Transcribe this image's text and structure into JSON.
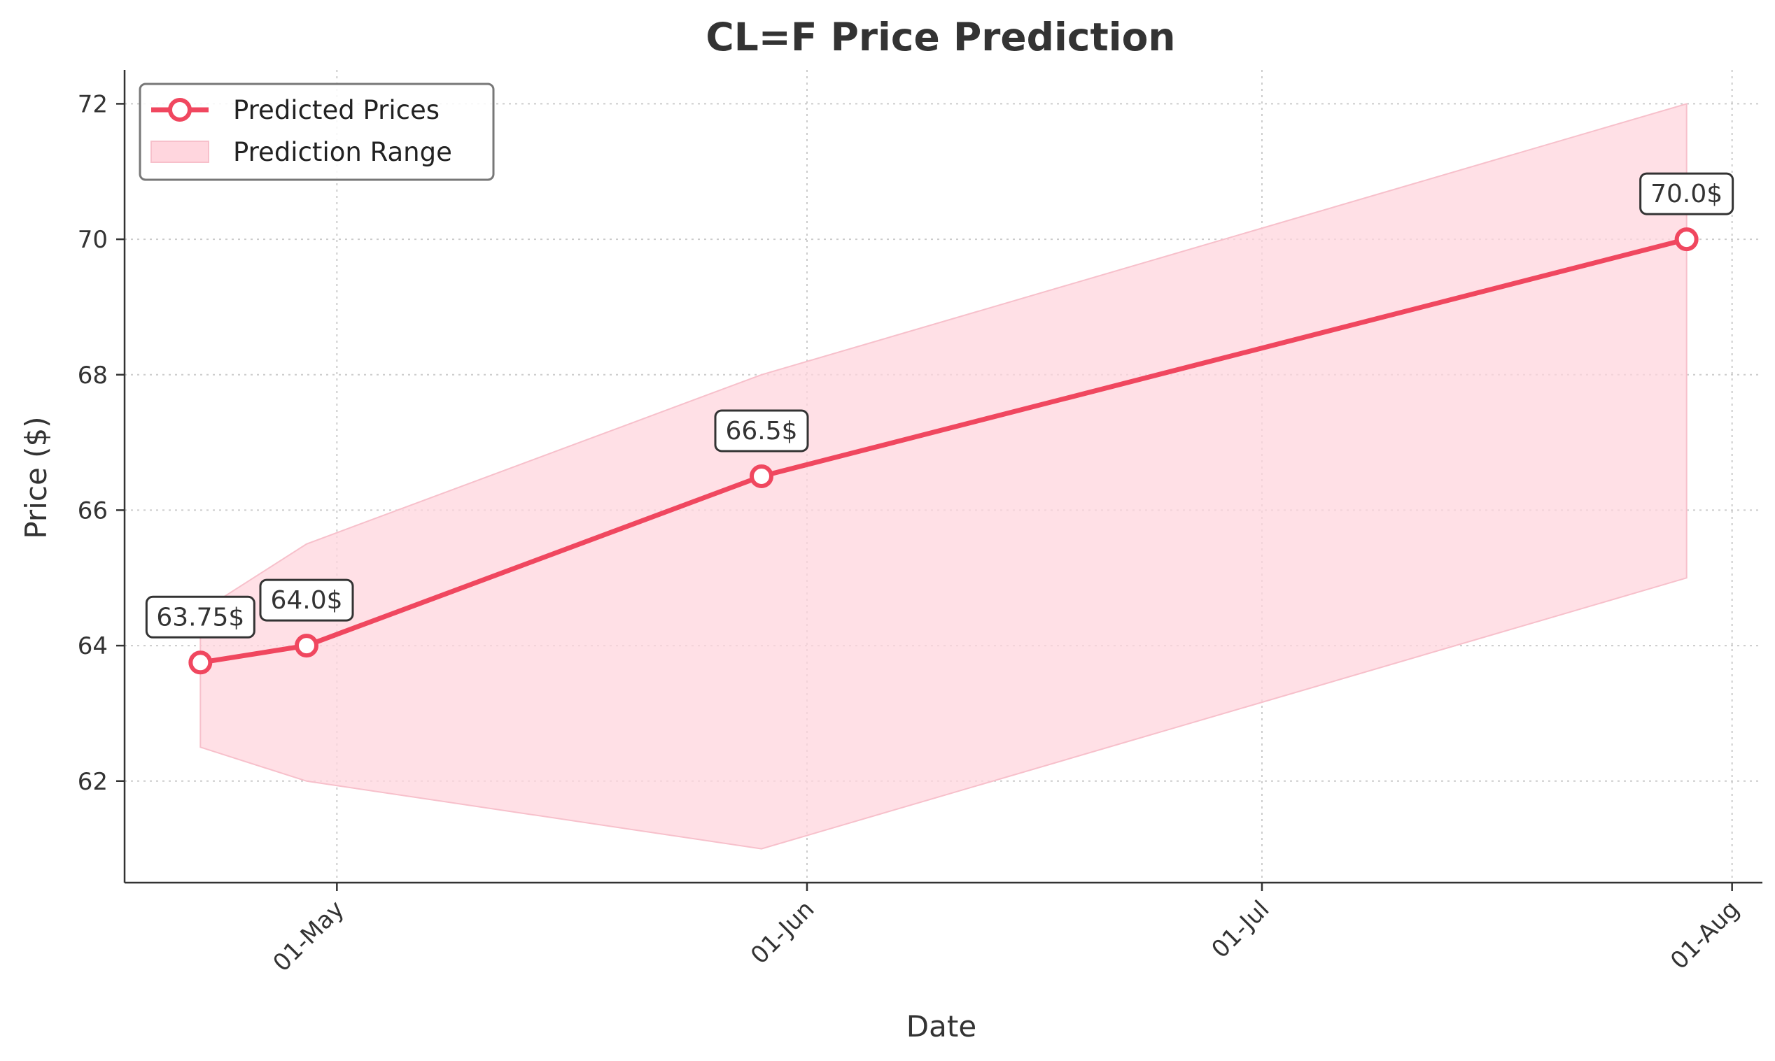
{
  "chart_data": {
    "type": "line",
    "title": "CL=F Price Prediction",
    "xlabel": "Date",
    "ylabel": "Price ($)",
    "x_ticks": [
      {
        "date": "2025-05-01",
        "label": "01-May"
      },
      {
        "date": "2025-06-01",
        "label": "01-Jun"
      },
      {
        "date": "2025-07-01",
        "label": "01-Jul"
      },
      {
        "date": "2025-08-01",
        "label": "01-Aug"
      }
    ],
    "y_ticks": [
      62,
      64,
      66,
      68,
      70,
      72
    ],
    "xlim": [
      "2025-04-17",
      "2025-08-03"
    ],
    "ylim": [
      60.5,
      72.5
    ],
    "grid": true,
    "legend_position": "top-left",
    "series": [
      {
        "name": "Predicted Prices",
        "color": "#f0475f",
        "points": [
          {
            "x": "2025-04-22",
            "y": 63.75,
            "label": "63.75$"
          },
          {
            "x": "2025-04-29",
            "y": 64.0,
            "label": "64.0$"
          },
          {
            "x": "2025-05-29",
            "y": 66.5,
            "label": "66.5$"
          },
          {
            "x": "2025-07-29",
            "y": 70.0,
            "label": "70.0$"
          }
        ]
      }
    ],
    "range": {
      "name": "Prediction Range",
      "color": "#ffd6de",
      "points": [
        {
          "x": "2025-04-22",
          "low": 62.5,
          "high": 64.5
        },
        {
          "x": "2025-04-29",
          "low": 62.0,
          "high": 65.5
        },
        {
          "x": "2025-05-29",
          "low": 61.0,
          "high": 68.0
        },
        {
          "x": "2025-07-29",
          "low": 65.0,
          "high": 72.0
        }
      ]
    }
  }
}
